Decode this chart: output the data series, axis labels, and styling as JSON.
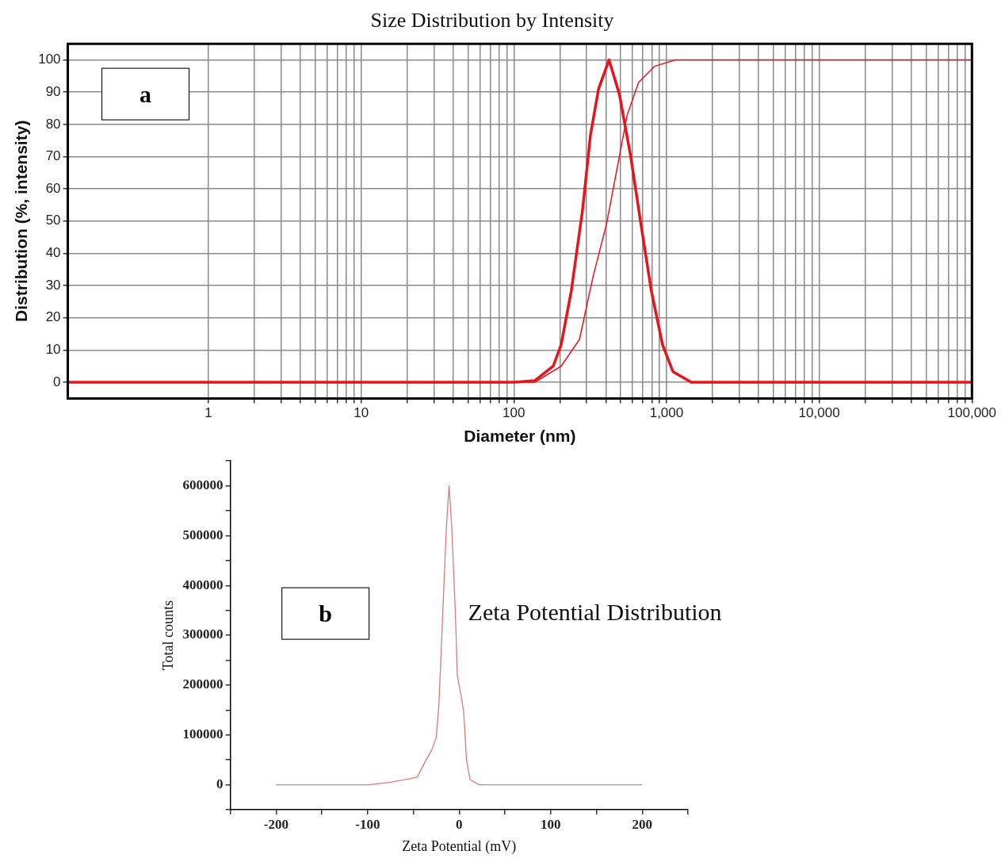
{
  "chart_data": [
    {
      "type": "line",
      "title": "Size Distribution by Intensity",
      "xlabel": "Diameter (nm)",
      "ylabel": "Distribution (%, intensity)",
      "log": "x",
      "xlim": [
        0.12,
        100000
      ],
      "xticks": [
        1,
        {
          "value": 2,
          "label": null
        },
        {
          "value": 3,
          "label": null
        },
        {
          "value": 4,
          "label": null
        },
        {
          "value": 5,
          "label": null
        },
        {
          "value": 6,
          "label": null
        },
        {
          "value": 7,
          "label": null
        },
        {
          "value": 8,
          "label": null
        },
        {
          "value": 9,
          "label": null
        },
        10,
        {
          "value": 20,
          "label": null
        },
        {
          "value": 30,
          "label": null
        },
        {
          "value": 40,
          "label": null
        },
        {
          "value": 50,
          "label": null
        },
        {
          "value": 60,
          "label": null
        },
        {
          "value": 70,
          "label": null
        },
        {
          "value": 80,
          "label": null
        },
        {
          "value": 90,
          "label": null
        },
        100,
        {
          "value": 200,
          "label": null
        },
        {
          "value": 300,
          "label": null
        },
        {
          "value": 400,
          "label": null
        },
        {
          "value": 500,
          "label": null
        },
        {
          "value": 600,
          "label": null
        },
        {
          "value": 700,
          "label": null
        },
        {
          "value": 800,
          "label": null
        },
        {
          "value": 900,
          "label": null
        },
        {
          "value": 1000,
          "label": "1,000"
        },
        {
          "value": 2000,
          "label": null
        },
        {
          "value": 3000,
          "label": null
        },
        {
          "value": 4000,
          "label": null
        },
        {
          "value": 5000,
          "label": null
        },
        {
          "value": 6000,
          "label": null
        },
        {
          "value": 7000,
          "label": null
        },
        {
          "value": 8000,
          "label": null
        },
        {
          "value": 9000,
          "label": null
        },
        {
          "value": 10000,
          "label": "10,000"
        },
        {
          "value": 20000,
          "label": null
        },
        {
          "value": 30000,
          "label": null
        },
        {
          "value": 40000,
          "label": null
        },
        {
          "value": 50000,
          "label": null
        },
        {
          "value": 60000,
          "label": null
        },
        {
          "value": 70000,
          "label": null
        },
        {
          "value": 80000,
          "label": null
        },
        {
          "value": 90000,
          "label": null
        },
        {
          "value": 100000,
          "label": "100,000"
        }
      ],
      "ylim": [
        -5,
        105
      ],
      "yticks": [
        0,
        10,
        20,
        30,
        40,
        50,
        60,
        70,
        80,
        90,
        100
      ],
      "grid": true,
      "marker": "none",
      "annotations": [
        "a"
      ],
      "series": [
        {
          "color": "#e8141c",
          "x": [
            0.12,
            100,
            137,
            181,
            204,
            238,
            282,
            318,
            359,
            420,
            491,
            581,
            679,
            795,
            942,
            1102,
            1452,
            100000
          ],
          "values": [
            0,
            0,
            0.5,
            5,
            11.6,
            28.4,
            53.5,
            76.9,
            91,
            100,
            89.4,
            70.4,
            49.2,
            28.4,
            11.6,
            3.3,
            0,
            0
          ]
        },
        {
          "color": "#e8141c",
          "x": [
            0.12,
            137,
            204,
            269,
            330,
            405,
            473,
            553,
            656,
            834,
            1142,
            100000
          ],
          "values": [
            0,
            0,
            5,
            13.3,
            32.7,
            49.2,
            66,
            83,
            93,
            98,
            100,
            100
          ]
        }
      ]
    },
    {
      "type": "line",
      "xlabel": "Zeta Potential (mV)",
      "ylabel": "Total counts",
      "xlim": [
        -250,
        250
      ],
      "xticks": [
        {
          "value": -250,
          "label": null
        },
        -200,
        {
          "value": -150,
          "label": null
        },
        -100,
        {
          "value": -50,
          "label": null
        },
        0,
        {
          "value": 50,
          "label": null
        },
        100,
        {
          "value": 150,
          "label": null
        },
        200,
        {
          "value": 250,
          "label": null
        }
      ],
      "ylim": [
        -50000,
        650000
      ],
      "yticks": [
        {
          "value": -50000,
          "label": null
        },
        0,
        {
          "value": 50000,
          "label": null
        },
        100000,
        {
          "value": 150000,
          "label": null
        },
        200000,
        {
          "value": 250000,
          "label": null
        },
        300000,
        {
          "value": 350000,
          "label": null
        },
        400000,
        {
          "value": 450000,
          "label": null
        },
        500000,
        {
          "value": 550000,
          "label": null
        },
        600000,
        {
          "value": 650000,
          "label": null
        }
      ],
      "grid": false,
      "marker": "none",
      "annotations": [
        "b",
        "Zeta Potential Distribution"
      ],
      "series": [
        {
          "color": "#d97a7e",
          "x": [
            -200,
            -99,
            -75,
            -46,
            -36,
            -30,
            -25,
            -22,
            -18,
            -14,
            -11,
            -8,
            -4,
            -2,
            2,
            5,
            8,
            12,
            22,
            200
          ],
          "values": [
            0,
            0,
            5000,
            15000,
            50000,
            70000,
            95000,
            165000,
            340000,
            515000,
            600000,
            515000,
            340000,
            220000,
            180000,
            145000,
            50000,
            10000,
            0,
            0
          ]
        }
      ]
    }
  ]
}
